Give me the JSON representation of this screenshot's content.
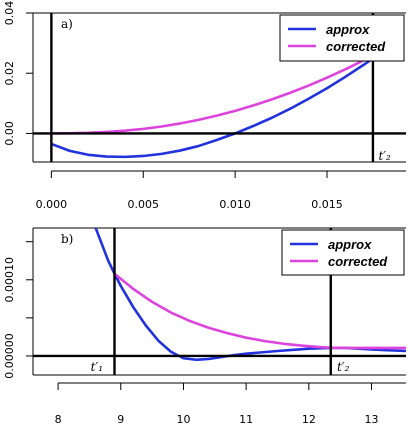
{
  "colors": {
    "approx": "#2233dd",
    "corrected": "#dd44dd"
  },
  "chart_data": [
    {
      "type": "line",
      "panel_label": "a)",
      "xlim": [
        -0.001,
        0.0193
      ],
      "ylim": [
        -0.0095,
        0.04
      ],
      "x_ticks": [
        0.0,
        0.005,
        0.01,
        0.015
      ],
      "x_tick_labels": [
        "0.000",
        "0.005",
        "0.010",
        "0.015"
      ],
      "y_ticks": [
        0.0,
        0.02,
        0.04
      ],
      "y_tick_labels": [
        "0.00",
        "0.02",
        "0.04"
      ],
      "legend_position": "top-right",
      "series": [
        {
          "name": "approx",
          "color": "#2233dd",
          "x": [
            0.0,
            0.001,
            0.002,
            0.003,
            0.004,
            0.005,
            0.006,
            0.007,
            0.008,
            0.009,
            0.01,
            0.011,
            0.012,
            0.013,
            0.014,
            0.015,
            0.016,
            0.017,
            0.018,
            0.019
          ],
          "y": [
            -0.0035,
            -0.0058,
            -0.0071,
            -0.0077,
            -0.0078,
            -0.0075,
            -0.0068,
            -0.0057,
            -0.0042,
            -0.0022,
            0.0,
            0.0025,
            0.0052,
            0.0082,
            0.0115,
            0.015,
            0.0188,
            0.0228,
            0.027,
            0.0314
          ]
        },
        {
          "name": "corrected",
          "color": "#dd44dd",
          "x": [
            0.0,
            0.001,
            0.002,
            0.003,
            0.004,
            0.005,
            0.006,
            0.007,
            0.008,
            0.009,
            0.01,
            0.011,
            0.012,
            0.013,
            0.014,
            0.015,
            0.016,
            0.017,
            0.018,
            0.019
          ],
          "y": [
            0.0,
            5e-05,
            0.0002,
            0.0005,
            0.0009,
            0.0015,
            0.0023,
            0.0033,
            0.0045,
            0.0059,
            0.0075,
            0.0093,
            0.0113,
            0.0135,
            0.0159,
            0.0185,
            0.0213,
            0.0243,
            0.0275,
            0.0309
          ]
        }
      ],
      "vlines": [
        0.0,
        0.0175
      ],
      "hline": 0.0,
      "annotations": [
        {
          "text": "t′₂",
          "x": 0.0178,
          "y": -0.0075
        }
      ]
    },
    {
      "type": "line",
      "panel_label": "b)",
      "xlim": [
        7.6,
        13.55
      ],
      "ylim": [
        -2.5e-05,
        0.000168
      ],
      "x_ticks": [
        8,
        9,
        10,
        11,
        12,
        13
      ],
      "x_tick_labels": [
        "8",
        "9",
        "10",
        "11",
        "12",
        "13"
      ],
      "y_ticks": [
        0.0,
        5e-05,
        0.0001,
        0.00015
      ],
      "y_tick_labels": [
        "0.00000",
        "",
        "0.00010",
        ""
      ],
      "legend_position": "top-right",
      "series": [
        {
          "name": "approx",
          "color": "#2233dd",
          "x": [
            8.6,
            8.8,
            8.9,
            9.0,
            9.2,
            9.4,
            9.6,
            9.8,
            10.0,
            10.2,
            10.4,
            10.6,
            10.8,
            11.0,
            11.5,
            12.0,
            12.35,
            12.6,
            13.0,
            13.55
          ],
          "y": [
            0.000168,
            0.000125,
            0.000108,
            9.2e-05,
            6.4e-05,
            4e-05,
            2e-05,
            5.5e-06,
            -3e-06,
            -5e-06,
            -4e-06,
            -1.5e-06,
            1e-06,
            3e-06,
            6.5e-06,
            9.5e-06,
            1.05e-05,
            1.05e-05,
            8.5e-06,
            6.5e-06
          ]
        },
        {
          "name": "corrected",
          "color": "#dd44dd",
          "x": [
            8.9,
            9.2,
            9.5,
            9.8,
            10.1,
            10.4,
            10.7,
            11.0,
            11.3,
            11.6,
            11.9,
            12.2,
            12.35,
            12.6,
            13.0,
            13.55
          ],
          "y": [
            0.000108,
            8.8e-05,
            7.1e-05,
            5.7e-05,
            4.6e-05,
            3.7e-05,
            3e-05,
            2.4e-05,
            1.95e-05,
            1.6e-05,
            1.35e-05,
            1.15e-05,
            1.08e-05,
            1.05e-05,
            1.05e-05,
            1.05e-05
          ]
        }
      ],
      "vlines": [
        8.9,
        12.35
      ],
      "hline": 0.0,
      "annotations": [
        {
          "text": "t′₁",
          "x": 8.52,
          "y": -1.45e-05
        },
        {
          "text": "t′₂",
          "x": 12.45,
          "y": -1.45e-05
        }
      ]
    }
  ]
}
